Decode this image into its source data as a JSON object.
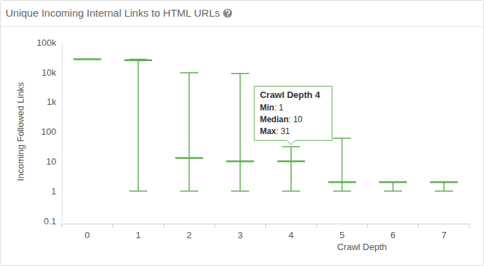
{
  "chart_data": {
    "type": "box",
    "title": "Unique Incoming Internal Links to HTML URLs",
    "x_label": "Crawl Depth",
    "y_label": "Incoming Followed Links",
    "categories": [
      "0",
      "1",
      "2",
      "3",
      "4",
      "5",
      "6",
      "7"
    ],
    "series": [
      {
        "name": "Min",
        "values": [
          27000,
          1,
          1,
          1,
          1,
          1,
          1,
          1
        ]
      },
      {
        "name": "Median",
        "values": [
          27000,
          25000,
          13,
          10,
          10,
          2,
          2,
          2
        ]
      },
      {
        "name": "Max",
        "values": [
          27000,
          27000,
          9500,
          9000,
          31,
          60,
          2,
          2
        ]
      }
    ],
    "color": "#5cae4e",
    "log": "y",
    "ylim": [
      0.1,
      100000
    ],
    "yticks": [
      0.1,
      1,
      10,
      100,
      {
        "value": 1000,
        "label": "1k"
      },
      {
        "value": 10000,
        "label": "10k"
      },
      {
        "value": 100000,
        "label": "100k"
      }
    ],
    "grid": false,
    "tooltip": {
      "title": "Crawl Depth 4",
      "category": "4"
    }
  }
}
